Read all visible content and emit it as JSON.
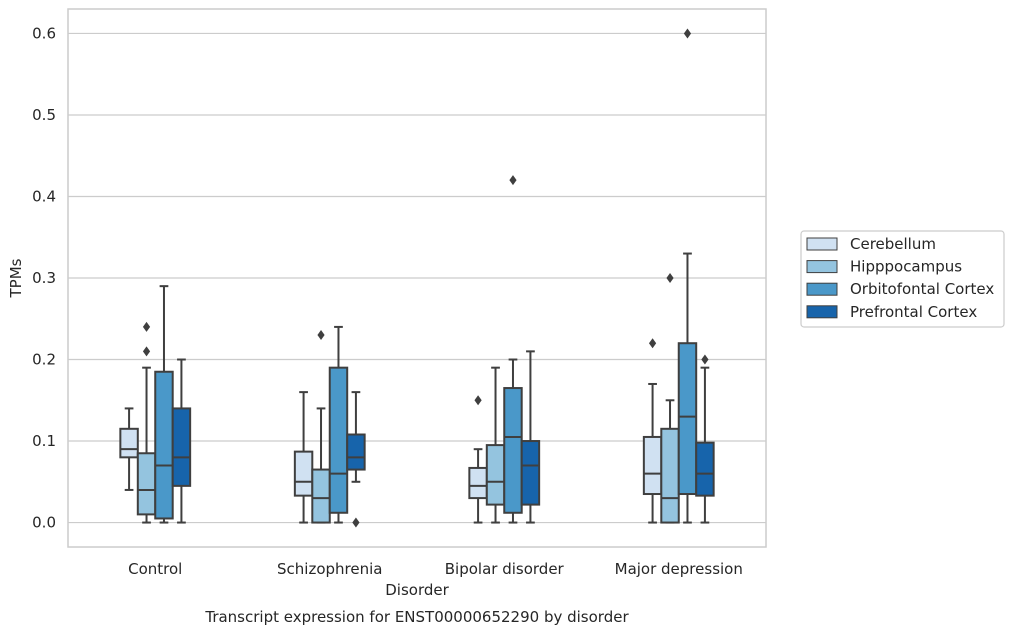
{
  "chart_data": {
    "type": "box",
    "title": "Transcript expression for ENST00000652290 by disorder",
    "xlabel": "Disorder",
    "ylabel": "TPMs",
    "ylim": [
      -0.03,
      0.63
    ],
    "yticks": [
      "0.0",
      "0.1",
      "0.2",
      "0.3",
      "0.4",
      "0.5",
      "0.6"
    ],
    "ytick_values": [
      0,
      0.1,
      0.2,
      0.3,
      0.4,
      0.5,
      0.6
    ],
    "grid": "horizontal",
    "legend_position": "right",
    "categories": [
      "Control",
      "Schizophrenia",
      "Bipolar disorder",
      "Major depression"
    ],
    "series": [
      {
        "name": "Cerebellum",
        "color": "#d0e1f2",
        "boxes": [
          {
            "low": 0.04,
            "q1": 0.08,
            "median": 0.09,
            "q3": 0.115,
            "high": 0.14,
            "outliers": []
          },
          {
            "low": 0.0,
            "q1": 0.033,
            "median": 0.05,
            "q3": 0.087,
            "high": 0.16,
            "outliers": []
          },
          {
            "low": 0.0,
            "q1": 0.03,
            "median": 0.045,
            "q3": 0.067,
            "high": 0.09,
            "outliers": [
              0.15
            ]
          },
          {
            "low": 0.0,
            "q1": 0.035,
            "median": 0.06,
            "q3": 0.105,
            "high": 0.17,
            "outliers": [
              0.22
            ]
          }
        ]
      },
      {
        "name": "Hipppocampus",
        "color": "#94c4df",
        "boxes": [
          {
            "low": 0.0,
            "q1": 0.01,
            "median": 0.04,
            "q3": 0.085,
            "high": 0.19,
            "outliers": [
              0.21,
              0.24
            ]
          },
          {
            "low": 0.0,
            "q1": 0.0,
            "median": 0.03,
            "q3": 0.065,
            "high": 0.14,
            "outliers": [
              0.23
            ]
          },
          {
            "low": 0.0,
            "q1": 0.022,
            "median": 0.05,
            "q3": 0.095,
            "high": 0.19,
            "outliers": []
          },
          {
            "low": 0.0,
            "q1": 0.0,
            "median": 0.03,
            "q3": 0.115,
            "high": 0.15,
            "outliers": [
              0.3
            ]
          }
        ]
      },
      {
        "name": "Orbitofontal Cortex",
        "color": "#4a98c9",
        "boxes": [
          {
            "low": 0.0,
            "q1": 0.005,
            "median": 0.07,
            "q3": 0.185,
            "high": 0.29,
            "outliers": []
          },
          {
            "low": 0.0,
            "q1": 0.012,
            "median": 0.06,
            "q3": 0.19,
            "high": 0.24,
            "outliers": []
          },
          {
            "low": 0.0,
            "q1": 0.012,
            "median": 0.105,
            "q3": 0.165,
            "high": 0.2,
            "outliers": [
              0.42
            ]
          },
          {
            "low": 0.0,
            "q1": 0.035,
            "median": 0.13,
            "q3": 0.22,
            "high": 0.33,
            "outliers": [
              0.6
            ]
          }
        ]
      },
      {
        "name": "Prefrontal Cortex",
        "color": "#1764ab",
        "boxes": [
          {
            "low": 0.0,
            "q1": 0.045,
            "median": 0.08,
            "q3": 0.14,
            "high": 0.2,
            "outliers": []
          },
          {
            "low": 0.05,
            "q1": 0.065,
            "median": 0.08,
            "q3": 0.108,
            "high": 0.16,
            "outliers": [
              0.0
            ]
          },
          {
            "low": 0.0,
            "q1": 0.022,
            "median": 0.07,
            "q3": 0.1,
            "high": 0.21,
            "outliers": []
          },
          {
            "low": 0.0,
            "q1": 0.033,
            "median": 0.06,
            "q3": 0.098,
            "high": 0.19,
            "outliers": [
              0.2
            ]
          }
        ]
      }
    ]
  }
}
